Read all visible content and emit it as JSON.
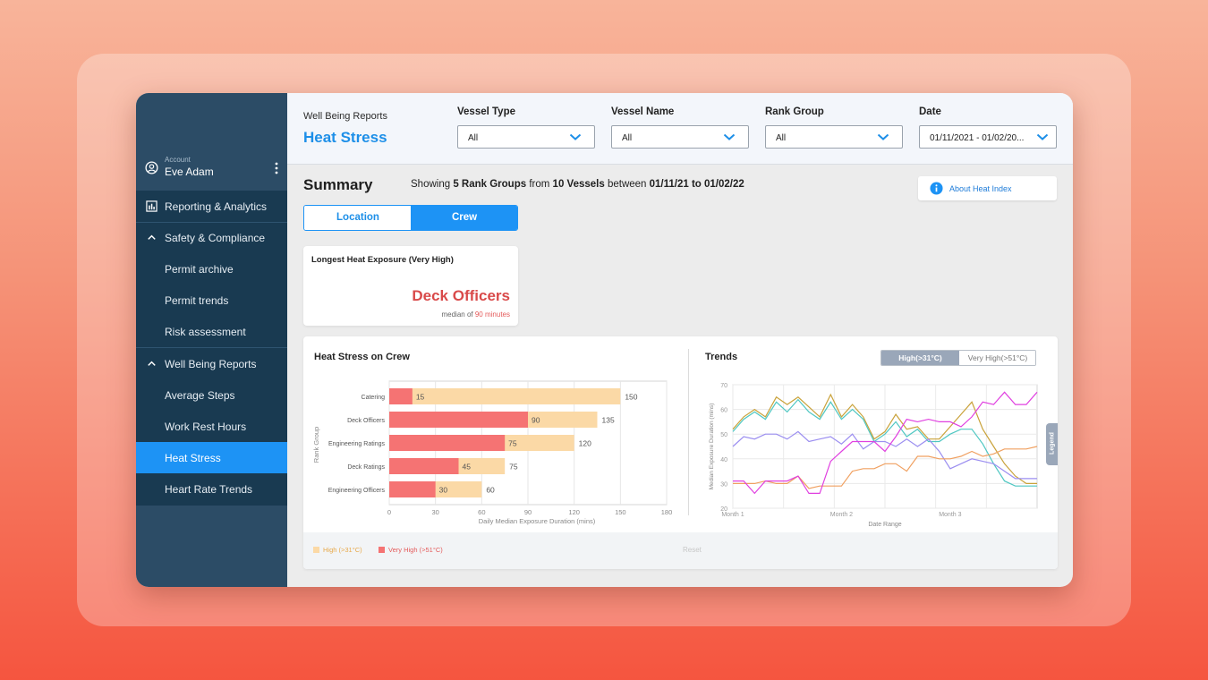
{
  "account": {
    "label": "Account",
    "name": "Eve Adam"
  },
  "sidebar": {
    "items": [
      {
        "label": "Reporting & Analytics",
        "icon": "chart-icon"
      },
      {
        "label": "Safety & Compliance",
        "icon": "chevron-up-icon"
      },
      {
        "label": "Permit archive"
      },
      {
        "label": "Permit trends"
      },
      {
        "label": "Risk assessment"
      },
      {
        "label": "Well Being Reports",
        "icon": "chevron-up-icon"
      },
      {
        "label": "Average Steps"
      },
      {
        "label": "Work Rest Hours"
      },
      {
        "label": "Heat Stress",
        "active": true
      },
      {
        "label": "Heart Rate Trends"
      }
    ]
  },
  "header": {
    "breadcrumb": "Well Being Reports",
    "title": "Heat Stress",
    "filters": [
      {
        "label": "Vessel Type",
        "value": "All"
      },
      {
        "label": "Vessel Name",
        "value": "All"
      },
      {
        "label": "Rank Group",
        "value": "All"
      },
      {
        "label": "Date",
        "value": "01/11/2021 - 01/02/20..."
      }
    ]
  },
  "summary": {
    "title": "Summary",
    "showing_prefix": "Showing",
    "rank_groups": "5 Rank Groups",
    "from": "from",
    "vessels": "10 Vessels",
    "between": "between",
    "range": "01/11/21 to 01/02/22",
    "about_button": "About Heat Index"
  },
  "view_toggle": {
    "location": "Location",
    "crew": "Crew",
    "selected": "Crew"
  },
  "kpi": {
    "title": "Longest Heat Exposure (Very High)",
    "value": "Deck Officers",
    "sub_prefix": "median of",
    "sub_value": "90 minutes"
  },
  "bar_panel": {
    "title": "Heat Stress on Crew"
  },
  "trend_panel": {
    "title": "Trends",
    "toggle_high": "High(>31°C)",
    "toggle_very_high": "Very High(>51°C)",
    "legend_tab": "Legend"
  },
  "footer": {
    "legend_high": "High (>31°C)",
    "legend_very_high": "Very High (>51°C)",
    "reset": "Reset"
  },
  "colors": {
    "accent": "#1d93f5",
    "high": "#fbd9a6",
    "very_high": "#f57373",
    "sidebar": "#2c4c66"
  },
  "chart_data": [
    {
      "type": "bar",
      "title": "Heat Stress on Crew",
      "orientation": "horizontal",
      "categories": [
        "Catering",
        "Deck Officers",
        "Engineering Ratings",
        "Deck Ratings",
        "Engineering Officers"
      ],
      "series": [
        {
          "name": "High (>31°C)",
          "values": [
            150,
            135,
            120,
            75,
            60
          ]
        },
        {
          "name": "Very High (>51°C)",
          "values": [
            15,
            90,
            75,
            45,
            30
          ]
        }
      ],
      "xlabel": "Daily Median Exposure Duration (mins)",
      "ylabel": "Rank Group",
      "xlim": [
        0,
        180
      ],
      "xticks": [
        0,
        30,
        60,
        90,
        120,
        150,
        180
      ],
      "grid": true
    },
    {
      "type": "line",
      "title": "Trends",
      "x": [
        1,
        2,
        3,
        4,
        5,
        6,
        7,
        8,
        9,
        10,
        11,
        12,
        13,
        14,
        15,
        16,
        17,
        18,
        19,
        20,
        21,
        22,
        23,
        24,
        25,
        26,
        27,
        28,
        29
      ],
      "xticks": [
        "Month 1",
        "Month 2",
        "Month 3"
      ],
      "xtick_positions": [
        1,
        11,
        21
      ],
      "xlabel": "Date Range",
      "ylabel": "Median Exposure Duration (mins)",
      "ylim": [
        20,
        70
      ],
      "yticks": [
        20,
        30,
        40,
        50,
        60,
        70
      ],
      "grid": true,
      "series": [
        {
          "color": "#c9a23a",
          "values": [
            52,
            57,
            60,
            57,
            65,
            62,
            65,
            61,
            57,
            66,
            57,
            62,
            57,
            48,
            51,
            58,
            52,
            53,
            48,
            48,
            53,
            58,
            63,
            52,
            45,
            38,
            33,
            30,
            30
          ]
        },
        {
          "color": "#4fc7c2",
          "values": [
            51,
            56,
            59,
            56,
            63,
            59,
            64,
            59,
            56,
            63,
            56,
            60,
            56,
            47,
            50,
            55,
            49,
            52,
            47,
            47,
            50,
            52,
            52,
            46,
            38,
            31,
            29,
            29,
            29
          ]
        },
        {
          "color": "#9b8ef0",
          "values": [
            45,
            49,
            48,
            50,
            50,
            48,
            51,
            47,
            48,
            49,
            46,
            50,
            44,
            47,
            47,
            45,
            48,
            45,
            48,
            43,
            36,
            38,
            40,
            39,
            38,
            35,
            32,
            32,
            32
          ]
        },
        {
          "color": "#f0a060",
          "values": [
            30,
            30,
            30,
            31,
            30,
            30,
            33,
            28,
            29,
            29,
            29,
            35,
            36,
            36,
            38,
            38,
            35,
            41,
            41,
            40,
            40,
            41,
            43,
            41,
            42,
            44,
            44,
            44,
            45
          ]
        },
        {
          "color": "#e040e0",
          "values": [
            31,
            31,
            26,
            31,
            31,
            31,
            33,
            26,
            26,
            39,
            43,
            47,
            47,
            47,
            43,
            49,
            56,
            55,
            56,
            55,
            55,
            53,
            57,
            63,
            62,
            67,
            62,
            62,
            67
          ]
        }
      ]
    }
  ]
}
